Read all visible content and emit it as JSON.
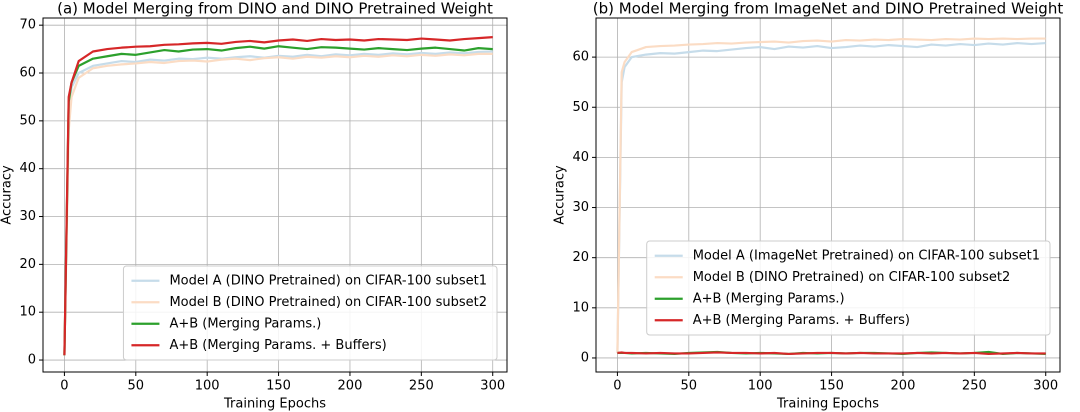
{
  "chart_data": [
    {
      "type": "line",
      "title": "(a) Model Merging from DINO and DINO Pretrained Weight",
      "x_label": "Training Epochs",
      "y_label": "Accuracy",
      "x": [
        0,
        3,
        5,
        10,
        20,
        30,
        40,
        50,
        60,
        70,
        80,
        90,
        100,
        110,
        120,
        130,
        140,
        150,
        160,
        170,
        180,
        190,
        200,
        210,
        220,
        230,
        240,
        250,
        260,
        270,
        280,
        290,
        300
      ],
      "series": [
        {
          "name": "Model A (DINO Pretrained) on CIFAR-100 subset1",
          "color": "#c6dcea",
          "values": [
            1,
            52,
            57,
            60,
            61.5,
            62,
            62.5,
            62.3,
            62.8,
            62.6,
            63,
            62.9,
            63.2,
            63,
            63.3,
            63.5,
            63.2,
            63.6,
            63.4,
            63.8,
            63.5,
            63.9,
            63.7,
            64,
            63.8,
            64.1,
            63.9,
            64.2,
            64,
            64.3,
            64.1,
            64.4,
            64.5
          ]
        },
        {
          "name": "Model B (DINO Pretrained) on CIFAR-100 subset2",
          "color": "#fbdcc4",
          "values": [
            1,
            48,
            55,
            59,
            61,
            61.5,
            61.8,
            62,
            62.3,
            62.1,
            62.5,
            62.6,
            62.4,
            62.8,
            63,
            62.7,
            63.1,
            63.3,
            63,
            63.4,
            63.2,
            63.5,
            63.3,
            63.6,
            63.4,
            63.7,
            63.5,
            63.8,
            63.6,
            63.9,
            63.7,
            64,
            64
          ]
        },
        {
          "name": "A+B (Merging Params.)",
          "color": "#2ca02c",
          "values": [
            1,
            54,
            58,
            61.5,
            63,
            63.5,
            64,
            63.8,
            64.3,
            64.8,
            64.5,
            64.9,
            65,
            64.7,
            65.2,
            65.5,
            65.1,
            65.6,
            65.3,
            65,
            65.4,
            65.3,
            65.1,
            64.9,
            65.2,
            65,
            64.8,
            65.1,
            65.3,
            65,
            64.7,
            65.2,
            65
          ]
        },
        {
          "name": "A+B (Merging Params. + Buffers)",
          "color": "#d62728",
          "values": [
            1,
            55,
            58,
            62.5,
            64.5,
            65,
            65.3,
            65.5,
            65.6,
            65.9,
            66,
            66.2,
            66.3,
            66.1,
            66.5,
            66.7,
            66.4,
            66.8,
            67,
            66.7,
            67.1,
            66.9,
            67,
            66.8,
            67.1,
            67,
            66.9,
            67.2,
            67,
            66.8,
            67.1,
            67.3,
            67.5
          ]
        }
      ],
      "xlim": [
        -15,
        310
      ],
      "ylim": [
        -2.5,
        71.5
      ],
      "xticks": [
        0,
        50,
        100,
        150,
        200,
        250,
        300
      ],
      "yticks": [
        0,
        10,
        20,
        30,
        40,
        50,
        60,
        70
      ],
      "grid": true,
      "legend": "lower right"
    },
    {
      "type": "line",
      "title": "(b) Model Merging from ImageNet and DINO Pretrained Weight",
      "x_label": "Training Epochs",
      "y_label": "Accuracy",
      "x": [
        0,
        3,
        5,
        10,
        20,
        30,
        40,
        50,
        60,
        70,
        80,
        90,
        100,
        110,
        120,
        130,
        140,
        150,
        160,
        170,
        180,
        190,
        200,
        210,
        220,
        230,
        240,
        250,
        260,
        270,
        280,
        290,
        300
      ],
      "series": [
        {
          "name": "Model A (ImageNet Pretrained) on CIFAR-100 subset1",
          "color": "#c6dcea",
          "values": [
            1,
            55,
            58,
            60,
            60.5,
            60.8,
            60.7,
            61,
            61.3,
            61.2,
            61.5,
            61.8,
            62,
            61.6,
            62.1,
            61.9,
            62.2,
            61.8,
            62,
            62.3,
            62.1,
            62.4,
            62.2,
            62,
            62.5,
            62.3,
            62.6,
            62.4,
            62.7,
            62.5,
            62.8,
            62.6,
            62.8
          ]
        },
        {
          "name": "Model B (DINO Pretrained) on CIFAR-100 subset2",
          "color": "#fbdcc4",
          "values": [
            1,
            57,
            59,
            61,
            62,
            62.2,
            62.3,
            62.5,
            62.6,
            62.8,
            62.7,
            62.9,
            63,
            63.1,
            62.9,
            63.2,
            63.3,
            63.1,
            63.4,
            63.3,
            63.5,
            63.4,
            63.6,
            63.5,
            63.4,
            63.6,
            63.5,
            63.7,
            63.6,
            63.7,
            63.6,
            63.7,
            63.7
          ]
        },
        {
          "name": "A+B (Merging Params.)",
          "color": "#2ca02c",
          "values": [
            1,
            1,
            1,
            0.9,
            1,
            0.9,
            0.8,
            1,
            1.1,
            1.2,
            1,
            0.9,
            1,
            0.9,
            0.8,
            1,
            0.9,
            1,
            0.9,
            1,
            1,
            0.9,
            0.8,
            1,
            1.1,
            1,
            0.9,
            1,
            1.2,
            0.8,
            1,
            0.9,
            0.8
          ]
        },
        {
          "name": "A+B (Merging Params. + Buffers)",
          "color": "#d62728",
          "values": [
            1,
            1.1,
            1,
            1,
            0.9,
            1,
            0.9,
            0.9,
            1,
            1.1,
            1,
            1,
            0.9,
            1,
            0.8,
            0.9,
            1,
            1,
            0.9,
            1,
            0.9,
            0.9,
            0.9,
            1,
            0.9,
            1,
            0.9,
            1,
            0.8,
            0.9,
            1,
            0.9,
            0.9
          ]
        }
      ],
      "xlim": [
        -15,
        310
      ],
      "ylim": [
        -2.8,
        67.8
      ],
      "xticks": [
        0,
        50,
        100,
        150,
        200,
        250,
        300
      ],
      "yticks": [
        0,
        10,
        20,
        30,
        40,
        50,
        60
      ],
      "grid": true,
      "legend": "lower right"
    }
  ]
}
